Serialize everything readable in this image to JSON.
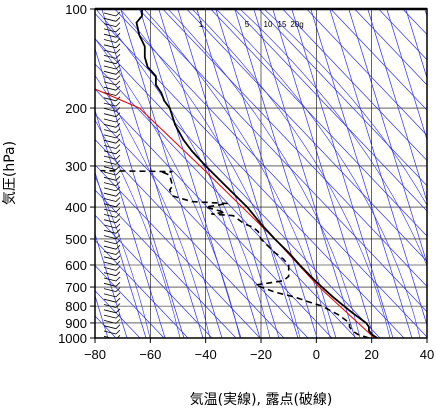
{
  "chart_data": {
    "type": "line",
    "title": "",
    "xlabel": "気温(実線), 露点(破線)",
    "ylabel": "気圧(hPa)",
    "y_scale": "log",
    "y_reversed": true,
    "xlim": [
      -80,
      40
    ],
    "ylim": [
      1000,
      100
    ],
    "x_ticks": [
      -80,
      -60,
      -40,
      -20,
      0,
      20,
      40
    ],
    "x_tick_labels": [
      "−80",
      "−60",
      "−40",
      "−20",
      "0",
      "20",
      "40"
    ],
    "y_ticks": [
      100,
      200,
      300,
      400,
      500,
      600,
      700,
      800,
      900,
      1000
    ],
    "y_tick_labels": [
      "100",
      "200",
      "300",
      "400",
      "500",
      "600",
      "700",
      "800",
      "900",
      "1000"
    ],
    "mixing_ratio_labels": [
      "1",
      "5",
      "10",
      "15",
      "20g"
    ],
    "colors": {
      "temperature": "#000000",
      "dewpoint": "#000000",
      "reference_line": "#e01010",
      "isotherms_adiabats": "#3030e0",
      "grid": "#000000"
    },
    "series": [
      {
        "style": "solid",
        "points": [
          {
            "p": 1000,
            "t": 22
          },
          {
            "p": 975,
            "t": 20
          },
          {
            "p": 950,
            "t": 19
          },
          {
            "p": 925,
            "t": 19
          },
          {
            "p": 900,
            "t": 18
          },
          {
            "p": 875,
            "t": 16
          },
          {
            "p": 850,
            "t": 14
          },
          {
            "p": 825,
            "t": 12
          },
          {
            "p": 800,
            "t": 10
          },
          {
            "p": 775,
            "t": 8
          },
          {
            "p": 750,
            "t": 6
          },
          {
            "p": 700,
            "t": 2
          },
          {
            "p": 650,
            "t": -2
          },
          {
            "p": 600,
            "t": -6
          },
          {
            "p": 550,
            "t": -10
          },
          {
            "p": 500,
            "t": -15
          },
          {
            "p": 450,
            "t": -20
          },
          {
            "p": 400,
            "t": -25
          },
          {
            "p": 350,
            "t": -32
          },
          {
            "p": 300,
            "t": -40
          },
          {
            "p": 270,
            "t": -45
          },
          {
            "p": 250,
            "t": -48
          },
          {
            "p": 225,
            "t": -51
          },
          {
            "p": 200,
            "t": -53
          },
          {
            "p": 190,
            "t": -55
          },
          {
            "p": 180,
            "t": -56
          },
          {
            "p": 170,
            "t": -58
          },
          {
            "p": 160,
            "t": -58
          },
          {
            "p": 150,
            "t": -61
          },
          {
            "p": 140,
            "t": -62
          },
          {
            "p": 130,
            "t": -62
          },
          {
            "p": 120,
            "t": -64
          },
          {
            "p": 110,
            "t": -65
          },
          {
            "p": 105,
            "t": -63
          },
          {
            "p": 100,
            "t": -63
          }
        ]
      },
      {
        "style": "dashed",
        "points": [
          {
            "p": 1000,
            "t": 19
          },
          {
            "p": 975,
            "t": 15
          },
          {
            "p": 950,
            "t": 13
          },
          {
            "p": 925,
            "t": 12
          },
          {
            "p": 900,
            "t": 12
          },
          {
            "p": 875,
            "t": 10
          },
          {
            "p": 850,
            "t": 8
          },
          {
            "p": 825,
            "t": 5
          },
          {
            "p": 800,
            "t": 2
          },
          {
            "p": 775,
            "t": -3
          },
          {
            "p": 750,
            "t": -8
          },
          {
            "p": 725,
            "t": -15
          },
          {
            "p": 700,
            "t": -20
          },
          {
            "p": 690,
            "t": -22
          },
          {
            "p": 680,
            "t": -17
          },
          {
            "p": 670,
            "t": -12
          },
          {
            "p": 650,
            "t": -10
          },
          {
            "p": 600,
            "t": -10
          },
          {
            "p": 575,
            "t": -12
          },
          {
            "p": 550,
            "t": -15
          },
          {
            "p": 500,
            "t": -20
          },
          {
            "p": 475,
            "t": -21
          },
          {
            "p": 460,
            "t": -23
          },
          {
            "p": 450,
            "t": -26
          },
          {
            "p": 425,
            "t": -30
          },
          {
            "p": 420,
            "t": -38
          },
          {
            "p": 415,
            "t": -33
          },
          {
            "p": 400,
            "t": -40
          },
          {
            "p": 390,
            "t": -32
          },
          {
            "p": 385,
            "t": -45
          },
          {
            "p": 370,
            "t": -52
          },
          {
            "p": 355,
            "t": -53
          },
          {
            "p": 345,
            "t": -52
          },
          {
            "p": 320,
            "t": -53
          },
          {
            "p": 315,
            "t": -55
          },
          {
            "p": 312,
            "t": -52
          },
          {
            "p": 310,
            "t": -78
          }
        ]
      }
    ],
    "reference_line": [
      {
        "p": 1000,
        "t": 21
      },
      {
        "p": 700,
        "t": 1
      },
      {
        "p": 500,
        "t": -15
      },
      {
        "p": 300,
        "t": -42
      },
      {
        "p": 200,
        "t": -64
      },
      {
        "p": 175,
        "t": -80
      }
    ]
  }
}
